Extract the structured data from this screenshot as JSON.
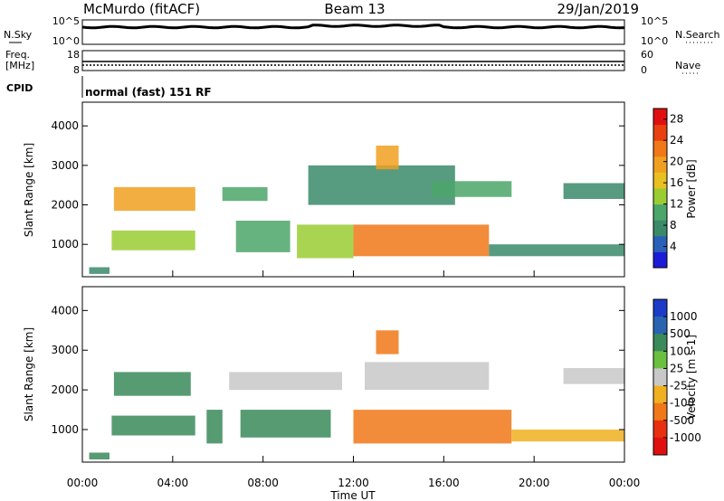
{
  "header": {
    "station": "McMurdo (fitACF)",
    "beam": "Beam 13",
    "date": "29/Jan/2019"
  },
  "status_panels": {
    "nsky_label": "N.Sky",
    "nsky_ticks": [
      "10^5",
      "10^0"
    ],
    "nsearch_label": "N.Search",
    "nsearch_ticks": [
      "10^5",
      "10^0"
    ],
    "freq_label": "Freq.",
    "freq_unit": "[MHz]",
    "freq_ticks": [
      "18",
      "8"
    ],
    "nave_label": "Nave",
    "nave_ticks": [
      "60",
      "0"
    ],
    "cpid_label": "CPID",
    "cpid_text": "normal (fast) 151 RF"
  },
  "chart_data": [
    {
      "type": "heatmap",
      "panel": "power",
      "xlabel": "Time UT",
      "ylabel": "Slant Range [km]",
      "x_ticks": [
        "00:00",
        "04:00",
        "08:00",
        "12:00",
        "16:00",
        "20:00",
        "00:00"
      ],
      "xlim_hours": [
        0,
        24
      ],
      "y_ticks": [
        "1000",
        "2000",
        "3000",
        "4000"
      ],
      "ylim_km": [
        180,
        4600
      ],
      "colorbar_label": "Power [dB]",
      "colorbar_ticks": [
        "4",
        "8",
        "12",
        "16",
        "20",
        "24",
        "28"
      ],
      "colorbar_range": [
        0,
        30
      ],
      "colors": [
        "#1c1cd8",
        "#2a60b8",
        "#3a8a6a",
        "#4ca66a",
        "#9acd32",
        "#e8c020",
        "#f0a020",
        "#f07818",
        "#e84010",
        "#e01010"
      ],
      "echo_regions": [
        {
          "t0": 0.3,
          "t1": 1.2,
          "r0": 250,
          "r1": 420,
          "value": 8
        },
        {
          "t0": 1.3,
          "t1": 5.0,
          "r0": 850,
          "r1": 1350,
          "value": 12
        },
        {
          "t0": 1.4,
          "t1": 5.0,
          "r0": 1850,
          "r1": 2450,
          "value": 18
        },
        {
          "t0": 6.2,
          "t1": 8.2,
          "r0": 2100,
          "r1": 2450,
          "value": 10
        },
        {
          "t0": 6.8,
          "t1": 9.2,
          "r0": 800,
          "r1": 1600,
          "value": 10
        },
        {
          "t0": 9.5,
          "t1": 12.0,
          "r0": 650,
          "r1": 1500,
          "value": 14
        },
        {
          "t0": 10.0,
          "t1": 16.5,
          "r0": 2000,
          "r1": 3000,
          "value": 8
        },
        {
          "t0": 12.0,
          "t1": 18.0,
          "r0": 700,
          "r1": 1500,
          "value": 22
        },
        {
          "t0": 13.0,
          "t1": 14.0,
          "r0": 2900,
          "r1": 3500,
          "value": 20
        },
        {
          "t0": 15.5,
          "t1": 19.0,
          "r0": 2200,
          "r1": 2600,
          "value": 10
        },
        {
          "t0": 18.0,
          "t1": 24.0,
          "r0": 700,
          "r1": 1000,
          "value": 8
        },
        {
          "t0": 21.3,
          "t1": 24.0,
          "r0": 2150,
          "r1": 2550,
          "value": 6
        }
      ]
    },
    {
      "type": "heatmap",
      "panel": "velocity",
      "xlabel": "Time UT",
      "ylabel": "Slant Range [km]",
      "x_ticks": [
        "00:00",
        "04:00",
        "08:00",
        "12:00",
        "16:00",
        "20:00",
        "00:00"
      ],
      "xlim_hours": [
        0,
        24
      ],
      "y_ticks": [
        "1000",
        "2000",
        "3000",
        "4000"
      ],
      "ylim_km": [
        180,
        4600
      ],
      "colorbar_label": "Velocity [m s-1]",
      "colorbar_ticks": [
        "1000",
        "500",
        "100",
        "25",
        "-25",
        "-100",
        "-500",
        "-1000"
      ],
      "colors": [
        "#1c3cc8",
        "#2a64b0",
        "#3a8a5a",
        "#6cc040",
        "#c8c8c8",
        "#f0b020",
        "#f07818",
        "#e83010",
        "#e01010"
      ],
      "echo_regions": [
        {
          "t0": 0.3,
          "t1": 1.2,
          "r0": 250,
          "r1": 420,
          "value": 100
        },
        {
          "t0": 1.3,
          "t1": 5.0,
          "r0": 850,
          "r1": 1350,
          "value": 100
        },
        {
          "t0": 1.4,
          "t1": 4.8,
          "r0": 1850,
          "r1": 2450,
          "value": 300
        },
        {
          "t0": 5.5,
          "t1": 6.2,
          "r0": 650,
          "r1": 1500,
          "value": 300
        },
        {
          "t0": 6.5,
          "t1": 11.5,
          "r0": 2000,
          "r1": 2450,
          "value": 0
        },
        {
          "t0": 7.0,
          "t1": 11.0,
          "r0": 800,
          "r1": 1500,
          "value": 100
        },
        {
          "t0": 12.0,
          "t1": 19.0,
          "r0": 650,
          "r1": 1500,
          "value": -300
        },
        {
          "t0": 13.0,
          "t1": 14.0,
          "r0": 2900,
          "r1": 3500,
          "value": -300
        },
        {
          "t0": 12.5,
          "t1": 18.0,
          "r0": 2000,
          "r1": 2700,
          "value": 0
        },
        {
          "t0": 19.0,
          "t1": 24.0,
          "r0": 700,
          "r1": 1000,
          "value": -80
        },
        {
          "t0": 21.3,
          "t1": 24.0,
          "r0": 2150,
          "r1": 2550,
          "value": 0
        }
      ]
    }
  ]
}
